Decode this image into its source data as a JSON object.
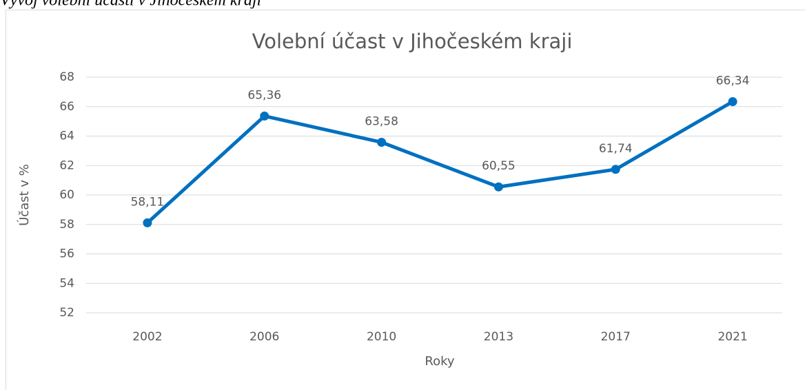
{
  "caption": "Vývoj volební účasti v Jihočeském kraji",
  "chart_data": {
    "type": "line",
    "title": "Volební účast v Jihočeském kraji",
    "x_label": "Roky",
    "y_label": "Účast v %",
    "categories": [
      "2002",
      "2006",
      "2010",
      "2013",
      "2017",
      "2021"
    ],
    "series": [
      {
        "name": "Účast v %",
        "color": "#0070c0",
        "values": [
          58.11,
          65.36,
          63.58,
          60.55,
          61.74,
          66.34
        ],
        "value_labels": [
          "58,11",
          "65,36",
          "63,58",
          "60,55",
          "61,74",
          "66,34"
        ]
      }
    ],
    "ylim": [
      52,
      68
    ],
    "yticks": [
      52,
      54,
      56,
      58,
      60,
      62,
      64,
      66,
      68
    ],
    "grid": true
  }
}
